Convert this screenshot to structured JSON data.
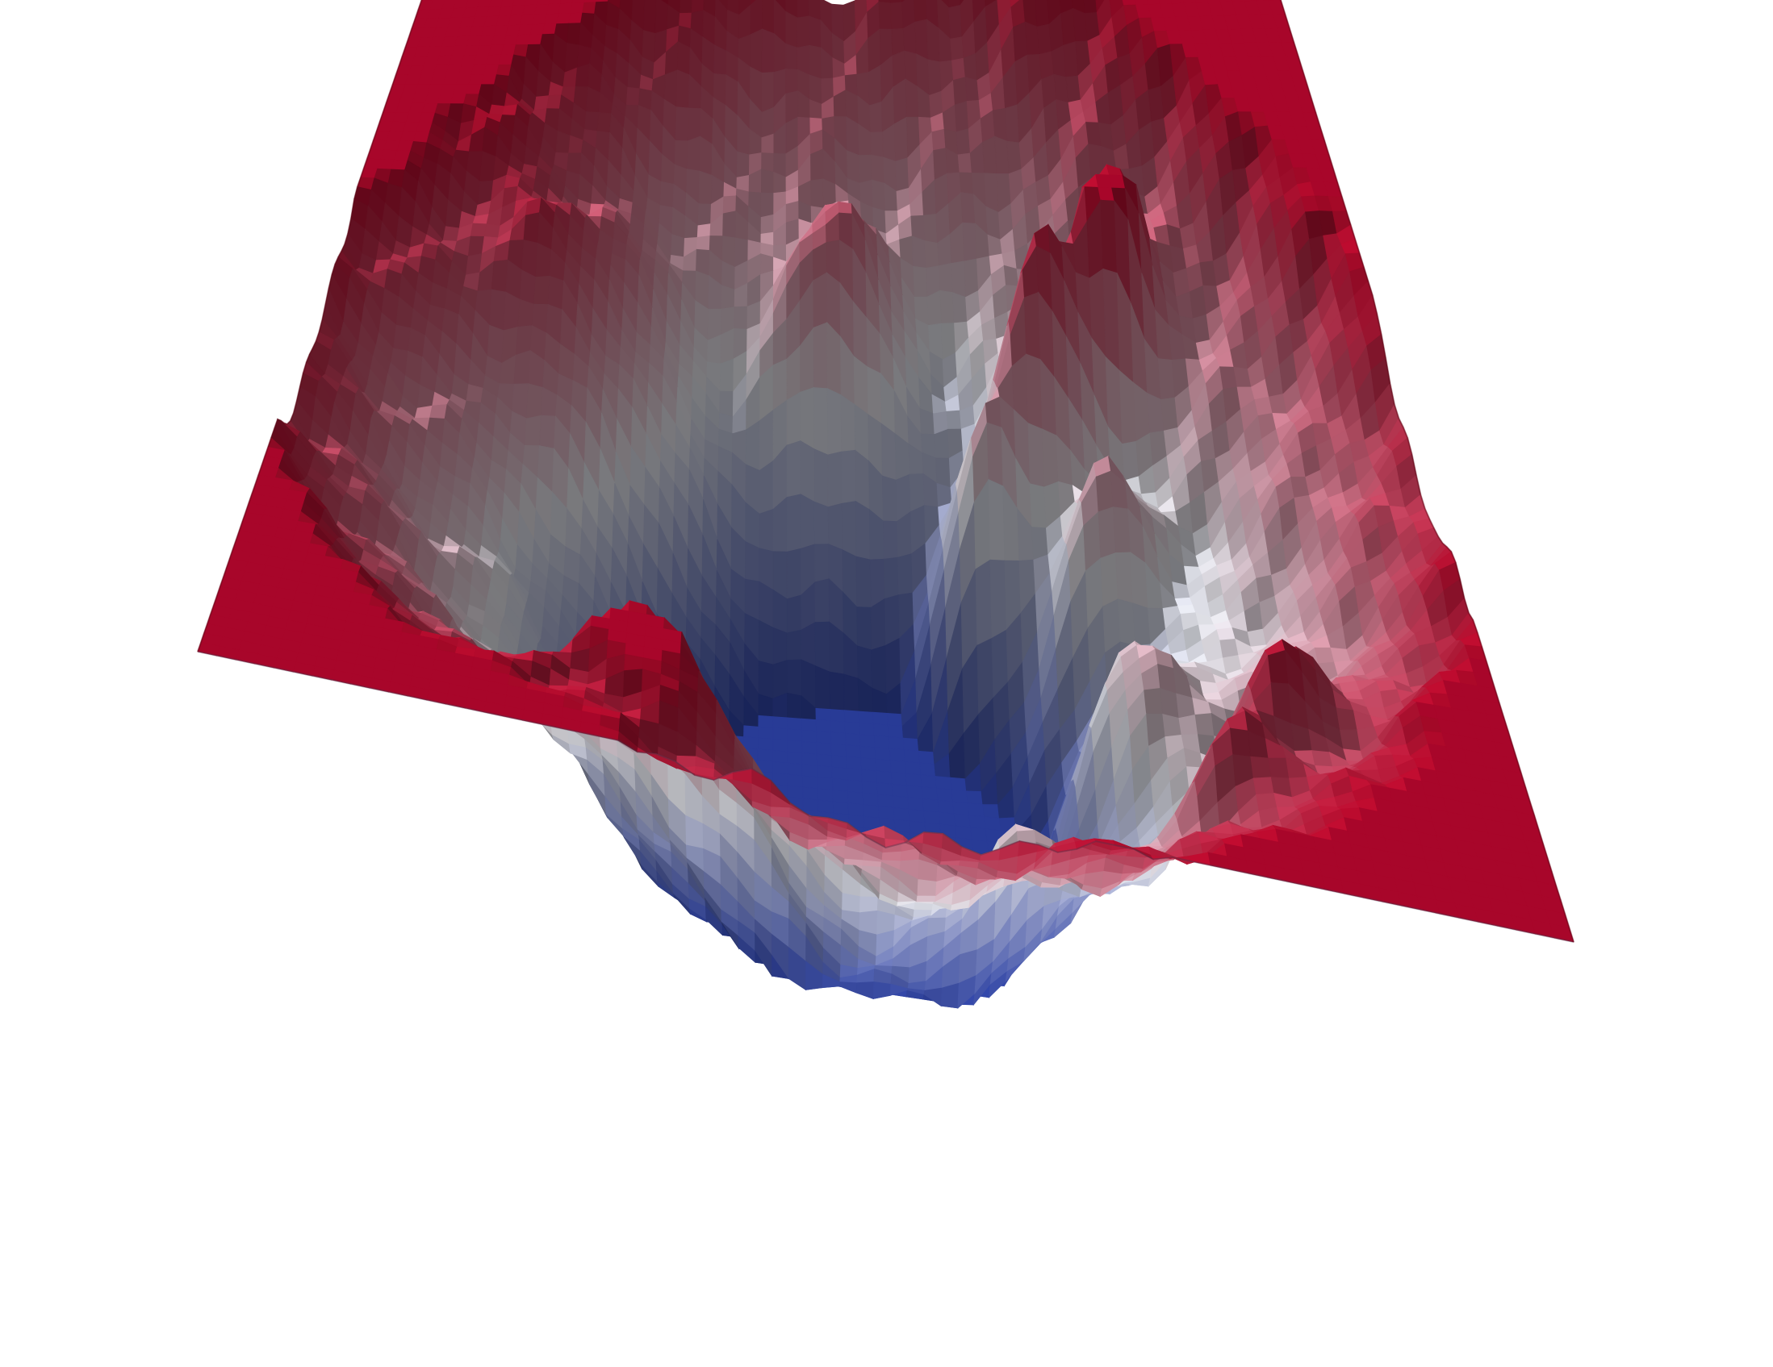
{
  "chart_data": {
    "type": "heatmap",
    "rendering": "3d-surface",
    "title": "",
    "xlabel": "",
    "ylabel": "",
    "zlabel": "",
    "axes_visible": false,
    "grid": false,
    "legend": "none",
    "colormap": {
      "name": "coolwarm",
      "low": "#2b3fa0",
      "mid": "#dcdde3",
      "high": "#b0092a",
      "clip": "#a8062a"
    },
    "background": "#ffffff",
    "grid_size": [
      72,
      72
    ],
    "z_range": [
      0,
      1
    ],
    "z_clip": 1,
    "features": [
      {
        "kind": "basin",
        "u": 0.5,
        "v": 0.55,
        "depth": 0.55,
        "width": 0.14
      },
      {
        "kind": "valley",
        "u": 0.42,
        "v": 0.52,
        "depth": 0.18,
        "width": 0.1
      },
      {
        "kind": "peak",
        "u": 0.68,
        "v": 0.3,
        "height": 0.55,
        "width": 0.035
      },
      {
        "kind": "peak",
        "u": 0.76,
        "v": 0.26,
        "height": 0.55,
        "width": 0.03
      },
      {
        "kind": "peak",
        "u": 0.62,
        "v": 0.36,
        "height": 0.45,
        "width": 0.035
      },
      {
        "kind": "peak",
        "u": 0.72,
        "v": 0.42,
        "height": 0.4,
        "width": 0.04
      },
      {
        "kind": "peak",
        "u": 0.57,
        "v": 0.47,
        "height": 0.28,
        "width": 0.035
      },
      {
        "kind": "ridge",
        "u": 0.73,
        "v": 0.58,
        "height": 0.38,
        "width": 0.05
      },
      {
        "kind": "peak",
        "u": 0.83,
        "v": 0.72,
        "height": 0.3,
        "width": 0.035
      },
      {
        "kind": "peak",
        "u": 0.62,
        "v": 0.78,
        "height": 0.24,
        "width": 0.03
      },
      {
        "kind": "peak",
        "u": 0.78,
        "v": 0.8,
        "height": 0.26,
        "width": 0.03
      },
      {
        "kind": "ridge",
        "u": 0.33,
        "v": 0.84,
        "height": 0.42,
        "width": 0.06
      },
      {
        "kind": "ridge",
        "u": 0.22,
        "v": 0.3,
        "height": 0.3,
        "width": 0.08
      },
      {
        "kind": "peak",
        "u": 0.48,
        "v": 0.22,
        "height": 0.4,
        "width": 0.05
      }
    ]
  }
}
